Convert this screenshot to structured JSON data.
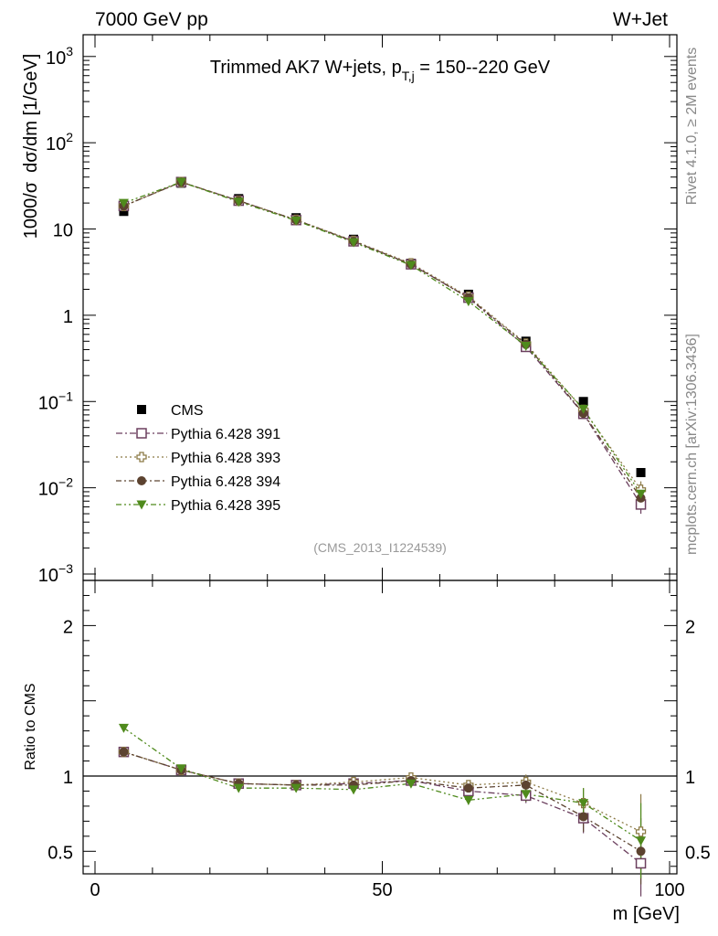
{
  "header": {
    "left": "7000 GeV pp",
    "right": "W+Jet"
  },
  "side": {
    "top": "Rivet 4.1.0, ≥ 2M events",
    "bottom": "mcplots.cern.ch [arXiv:1306.3436]"
  },
  "colors": {
    "cms": "#000000",
    "s391": "#6b3f5e",
    "s393": "#8c7a46",
    "s394": "#5c4330",
    "s395": "#4f8a1c"
  },
  "chart_data": {
    "type": "scatter",
    "title_parts": {
      "main": "Trimmed AK7 W+jets, p",
      "sub": "T,j",
      "tail": " = 150--220 GeV"
    },
    "analysis_tag": "(CMS_2013_I1224539)",
    "xlabel": "m [GeV]",
    "ylabel_parts": {
      "a": "1000/σ",
      "b": "dσ/dm [1/GeV]"
    },
    "ratio_ylabel": "Ratio to CMS",
    "xlim": [
      0,
      100
    ],
    "x_ticks": [
      {
        "v": 0,
        "label": "0"
      },
      {
        "v": 50,
        "label": "50"
      },
      {
        "v": 100,
        "label": "100"
      }
    ],
    "ylim_log": [
      0.001,
      1400
    ],
    "y_ticks": [
      {
        "v": 1000,
        "label": "10",
        "exp": "3"
      },
      {
        "v": 100,
        "label": "10",
        "exp": "2"
      },
      {
        "v": 10,
        "label": "10",
        "exp": ""
      },
      {
        "v": 1,
        "label": "1",
        "exp": ""
      },
      {
        "v": 0.1,
        "label": "10",
        "exp": "−1"
      },
      {
        "v": 0.01,
        "label": "10",
        "exp": "−2"
      },
      {
        "v": 0.001,
        "label": "10",
        "exp": "−3"
      }
    ],
    "ratio_ylim": [
      0.35,
      2.3
    ],
    "ratio_ticks": [
      {
        "v": 2,
        "label": "2"
      },
      {
        "v": 1,
        "label": "1"
      },
      {
        "v": 0.5,
        "label": "0.5"
      }
    ],
    "x": [
      5,
      15,
      25,
      35,
      45,
      55,
      65,
      75,
      85,
      95
    ],
    "data": {
      "name": "CMS",
      "values": [
        16,
        34,
        22.5,
        13.5,
        7.6,
        4.0,
        1.75,
        0.5,
        0.1,
        0.015
      ]
    },
    "series": [
      {
        "key": "s391",
        "name": "Pythia 6.428 391",
        "marker": "open-square",
        "dash": "7,3,2,3",
        "values": [
          18.5,
          35,
          21.3,
          12.7,
          7.2,
          3.9,
          1.6,
          0.43,
          0.072,
          0.0064
        ],
        "ratio": [
          1.16,
          1.04,
          0.95,
          0.94,
          0.95,
          0.97,
          0.9,
          0.87,
          0.72,
          0.42
        ],
        "ratio_err": [
          0.02,
          0.02,
          0.02,
          0.02,
          0.02,
          0.02,
          0.03,
          0.05,
          0.1,
          0.22
        ]
      },
      {
        "key": "s393",
        "name": "Pythia 6.428 393",
        "marker": "open-cross",
        "dash": "2,3",
        "values": [
          18.5,
          35,
          21.3,
          12.8,
          7.3,
          4.0,
          1.65,
          0.47,
          0.08,
          0.0095
        ],
        "ratio": [
          1.16,
          1.04,
          0.95,
          0.94,
          0.96,
          0.99,
          0.94,
          0.96,
          0.82,
          0.63
        ],
        "ratio_err": [
          0.02,
          0.02,
          0.02,
          0.02,
          0.02,
          0.02,
          0.03,
          0.05,
          0.1,
          0.25
        ]
      },
      {
        "key": "s394",
        "name": "Pythia 6.428 394",
        "marker": "filled-circle",
        "dash": "6,3,2,3",
        "values": [
          18.5,
          35,
          21.3,
          12.7,
          7.2,
          3.9,
          1.6,
          0.46,
          0.073,
          0.0076
        ],
        "ratio": [
          1.16,
          1.04,
          0.95,
          0.94,
          0.94,
          0.97,
          0.92,
          0.94,
          0.73,
          0.5
        ],
        "ratio_err": [
          0.02,
          0.02,
          0.02,
          0.02,
          0.02,
          0.02,
          0.03,
          0.05,
          0.1,
          0.22
        ]
      },
      {
        "key": "s395",
        "name": "Pythia 6.428 395",
        "marker": "filled-triangle-down",
        "dash": "6,3,2,3,2,3",
        "values": [
          20,
          35,
          20.7,
          12.5,
          7.0,
          3.8,
          1.45,
          0.44,
          0.082,
          0.0085
        ],
        "ratio": [
          1.32,
          1.05,
          0.92,
          0.92,
          0.91,
          0.95,
          0.84,
          0.88,
          0.82,
          0.57
        ],
        "ratio_err": [
          0.02,
          0.02,
          0.02,
          0.02,
          0.02,
          0.02,
          0.03,
          0.05,
          0.1,
          0.25
        ]
      }
    ],
    "legend_position": "center-left"
  }
}
